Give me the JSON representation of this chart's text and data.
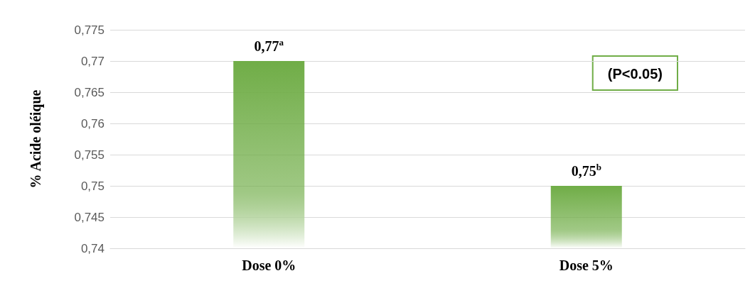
{
  "chart_data": {
    "type": "bar",
    "ylabel": "% Acide oléique",
    "categories": [
      "Dose 0%",
      "Dose 5%"
    ],
    "values": [
      0.77,
      0.75
    ],
    "value_labels": [
      "0,77$^{a}$",
      "0,75$^{b}$"
    ],
    "color": "#70ad47",
    "ylim": [
      0.74,
      0.775
    ],
    "yticks": [
      {
        "value": 0.74,
        "label": "0,74"
      },
      {
        "value": 0.745,
        "label": "0,745"
      },
      {
        "value": 0.75,
        "label": "0,75"
      },
      {
        "value": 0.755,
        "label": "0,755"
      },
      {
        "value": 0.76,
        "label": "0,76"
      },
      {
        "value": 0.765,
        "label": "0,765"
      },
      {
        "value": 0.77,
        "label": "0,77"
      },
      {
        "value": 0.775,
        "label": "0,775"
      }
    ],
    "grid": "y",
    "annotations": [
      "(P<0.05)"
    ]
  }
}
